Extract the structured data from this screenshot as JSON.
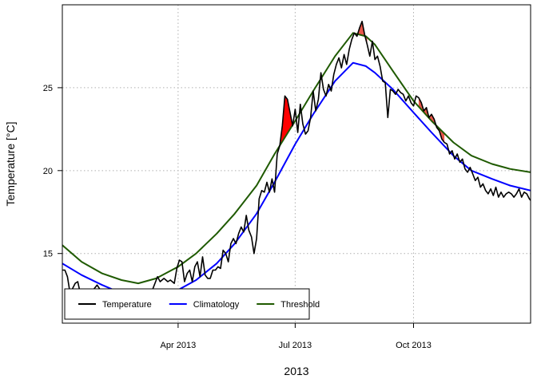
{
  "chart_data": {
    "type": "line",
    "title": "",
    "xlabel": "2013",
    "ylabel": "Temperature [°C]",
    "xlim": [
      "2013-01-01",
      "2013-12-31"
    ],
    "ylim": [
      10.8,
      30.0
    ],
    "grid": true,
    "legend_position": "bottom-left",
    "x_ticks": [
      {
        "date": "2013-04-01",
        "label": "Apr 2013"
      },
      {
        "date": "2013-07-01",
        "label": "Jul 2013"
      },
      {
        "date": "2013-10-01",
        "label": "Oct 2013"
      }
    ],
    "y_ticks": [
      15,
      20,
      25
    ],
    "series": [
      {
        "name": "Temperature",
        "color": "#000000",
        "points": [
          [
            "2013-01-01",
            14.0
          ],
          [
            "2013-01-03",
            14.0
          ],
          [
            "2013-01-05",
            13.6
          ],
          [
            "2013-01-07",
            12.6
          ],
          [
            "2013-01-09",
            12.9
          ],
          [
            "2013-01-11",
            13.2
          ],
          [
            "2013-01-13",
            13.3
          ],
          [
            "2013-01-15",
            12.6
          ],
          [
            "2013-01-20",
            12.5
          ],
          [
            "2013-01-25",
            12.8
          ],
          [
            "2013-01-28",
            13.1
          ],
          [
            "2013-02-03",
            12.4
          ],
          [
            "2013-02-10",
            12.3
          ],
          [
            "2013-02-18",
            12.2
          ],
          [
            "2013-02-25",
            12.3
          ],
          [
            "2013-03-05",
            12.5
          ],
          [
            "2013-03-12",
            12.8
          ],
          [
            "2013-03-15",
            13.4
          ],
          [
            "2013-03-16",
            13.6
          ],
          [
            "2013-03-18",
            13.3
          ],
          [
            "2013-03-21",
            13.5
          ],
          [
            "2013-03-24",
            13.3
          ],
          [
            "2013-03-26",
            13.4
          ],
          [
            "2013-03-29",
            13.2
          ],
          [
            "2013-03-31",
            14.1
          ],
          [
            "2013-04-02",
            14.6
          ],
          [
            "2013-04-04",
            14.5
          ],
          [
            "2013-04-06",
            13.3
          ],
          [
            "2013-04-08",
            13.8
          ],
          [
            "2013-04-10",
            14.0
          ],
          [
            "2013-04-12",
            13.3
          ],
          [
            "2013-04-14",
            14.2
          ],
          [
            "2013-04-16",
            14.5
          ],
          [
            "2013-04-18",
            13.6
          ],
          [
            "2013-04-20",
            14.8
          ],
          [
            "2013-04-22",
            13.7
          ],
          [
            "2013-04-24",
            13.5
          ],
          [
            "2013-04-26",
            13.5
          ],
          [
            "2013-04-28",
            14.0
          ],
          [
            "2013-04-30",
            14.0
          ],
          [
            "2013-05-02",
            14.2
          ],
          [
            "2013-05-04",
            14.1
          ],
          [
            "2013-05-06",
            15.2
          ],
          [
            "2013-05-08",
            15.0
          ],
          [
            "2013-05-10",
            14.5
          ],
          [
            "2013-05-12",
            15.6
          ],
          [
            "2013-05-14",
            15.9
          ],
          [
            "2013-05-16",
            15.6
          ],
          [
            "2013-05-18",
            16.2
          ],
          [
            "2013-05-20",
            16.6
          ],
          [
            "2013-05-22",
            16.3
          ],
          [
            "2013-05-24",
            17.3
          ],
          [
            "2013-05-26",
            16.4
          ],
          [
            "2013-05-28",
            16.0
          ],
          [
            "2013-05-30",
            15.0
          ],
          [
            "2013-06-01",
            15.9
          ],
          [
            "2013-06-03",
            18.3
          ],
          [
            "2013-06-05",
            18.8
          ],
          [
            "2013-06-07",
            18.7
          ],
          [
            "2013-06-09",
            19.3
          ],
          [
            "2013-06-11",
            18.7
          ],
          [
            "2013-06-13",
            19.5
          ],
          [
            "2013-06-15",
            18.7
          ],
          [
            "2013-06-17",
            21.0
          ],
          [
            "2013-06-19",
            21.5
          ],
          [
            "2013-06-21",
            22.7
          ],
          [
            "2013-06-23",
            24.5
          ],
          [
            "2013-06-25",
            24.3
          ],
          [
            "2013-06-27",
            23.5
          ],
          [
            "2013-06-29",
            22.7
          ],
          [
            "2013-07-01",
            23.7
          ],
          [
            "2013-07-03",
            22.3
          ],
          [
            "2013-07-05",
            24.0
          ],
          [
            "2013-07-07",
            22.8
          ],
          [
            "2013-07-09",
            22.2
          ],
          [
            "2013-07-11",
            22.4
          ],
          [
            "2013-07-13",
            23.2
          ],
          [
            "2013-07-15",
            24.8
          ],
          [
            "2013-07-17",
            23.6
          ],
          [
            "2013-07-19",
            24.3
          ],
          [
            "2013-07-21",
            25.9
          ],
          [
            "2013-07-23",
            24.9
          ],
          [
            "2013-07-25",
            24.5
          ],
          [
            "2013-07-27",
            25.2
          ],
          [
            "2013-07-29",
            24.8
          ],
          [
            "2013-07-31",
            25.8
          ],
          [
            "2013-08-02",
            26.4
          ],
          [
            "2013-08-04",
            26.8
          ],
          [
            "2013-08-06",
            26.2
          ],
          [
            "2013-08-08",
            27.0
          ],
          [
            "2013-08-10",
            26.4
          ],
          [
            "2013-08-12",
            27.3
          ],
          [
            "2013-08-14",
            27.9
          ],
          [
            "2013-08-16",
            28.3
          ],
          [
            "2013-08-18",
            28.1
          ],
          [
            "2013-08-20",
            28.6
          ],
          [
            "2013-08-22",
            29.0
          ],
          [
            "2013-08-24",
            28.2
          ],
          [
            "2013-08-26",
            27.6
          ],
          [
            "2013-08-28",
            26.9
          ],
          [
            "2013-08-30",
            27.8
          ],
          [
            "2013-09-01",
            26.7
          ],
          [
            "2013-09-03",
            26.9
          ],
          [
            "2013-09-05",
            26.3
          ],
          [
            "2013-09-07",
            25.4
          ],
          [
            "2013-09-09",
            25.3
          ],
          [
            "2013-09-11",
            23.2
          ],
          [
            "2013-09-13",
            24.9
          ],
          [
            "2013-09-15",
            24.8
          ],
          [
            "2013-09-17",
            24.6
          ],
          [
            "2013-09-19",
            24.9
          ],
          [
            "2013-09-21",
            24.7
          ],
          [
            "2013-09-23",
            24.6
          ],
          [
            "2013-09-25",
            24.2
          ],
          [
            "2013-09-27",
            24.5
          ],
          [
            "2013-09-29",
            24.1
          ],
          [
            "2013-10-01",
            23.9
          ],
          [
            "2013-10-03",
            24.5
          ],
          [
            "2013-10-05",
            24.4
          ],
          [
            "2013-10-07",
            24.1
          ],
          [
            "2013-10-09",
            23.6
          ],
          [
            "2013-10-11",
            23.8
          ],
          [
            "2013-10-13",
            23.2
          ],
          [
            "2013-10-15",
            23.4
          ],
          [
            "2013-10-17",
            23.1
          ],
          [
            "2013-10-19",
            22.6
          ],
          [
            "2013-10-21",
            22.4
          ],
          [
            "2013-10-23",
            21.9
          ],
          [
            "2013-10-25",
            21.7
          ],
          [
            "2013-10-27",
            21.6
          ],
          [
            "2013-10-29",
            21.0
          ],
          [
            "2013-10-31",
            21.2
          ],
          [
            "2013-11-02",
            20.7
          ],
          [
            "2013-11-04",
            21.0
          ],
          [
            "2013-11-06",
            20.5
          ],
          [
            "2013-11-08",
            20.7
          ],
          [
            "2013-11-10",
            20.1
          ],
          [
            "2013-11-12",
            19.9
          ],
          [
            "2013-11-14",
            20.2
          ],
          [
            "2013-11-16",
            19.8
          ],
          [
            "2013-11-18",
            19.4
          ],
          [
            "2013-11-20",
            19.6
          ],
          [
            "2013-11-22",
            19.0
          ],
          [
            "2013-11-24",
            19.2
          ],
          [
            "2013-11-26",
            18.8
          ],
          [
            "2013-11-28",
            18.6
          ],
          [
            "2013-11-30",
            18.9
          ],
          [
            "2013-12-02",
            18.5
          ],
          [
            "2013-12-04",
            19.0
          ],
          [
            "2013-12-06",
            18.4
          ],
          [
            "2013-12-08",
            18.7
          ],
          [
            "2013-12-10",
            18.4
          ],
          [
            "2013-12-12",
            18.6
          ],
          [
            "2013-12-14",
            18.7
          ],
          [
            "2013-12-16",
            18.6
          ],
          [
            "2013-12-18",
            18.4
          ],
          [
            "2013-12-20",
            18.6
          ],
          [
            "2013-12-22",
            18.9
          ],
          [
            "2013-12-24",
            18.4
          ],
          [
            "2013-12-26",
            18.7
          ],
          [
            "2013-12-28",
            18.6
          ],
          [
            "2013-12-30",
            18.3
          ],
          [
            "2013-12-31",
            18.2
          ]
        ]
      },
      {
        "name": "Climatology",
        "color": "#0000ff",
        "points": [
          [
            "2013-01-01",
            14.4
          ],
          [
            "2013-01-16",
            13.7
          ],
          [
            "2013-02-01",
            13.1
          ],
          [
            "2013-02-16",
            12.6
          ],
          [
            "2013-03-01",
            12.3
          ],
          [
            "2013-03-15",
            12.4
          ],
          [
            "2013-04-01",
            12.8
          ],
          [
            "2013-04-15",
            13.4
          ],
          [
            "2013-05-01",
            14.4
          ],
          [
            "2013-05-15",
            15.6
          ],
          [
            "2013-06-01",
            17.4
          ],
          [
            "2013-06-15",
            19.3
          ],
          [
            "2013-07-01",
            21.6
          ],
          [
            "2013-07-15",
            23.4
          ],
          [
            "2013-08-01",
            25.4
          ],
          [
            "2013-08-15",
            26.5
          ],
          [
            "2013-08-25",
            26.3
          ],
          [
            "2013-09-01",
            25.9
          ],
          [
            "2013-09-15",
            24.9
          ],
          [
            "2013-10-01",
            23.5
          ],
          [
            "2013-10-15",
            22.3
          ],
          [
            "2013-11-01",
            20.9
          ],
          [
            "2013-11-15",
            20.0
          ],
          [
            "2013-12-01",
            19.5
          ],
          [
            "2013-12-15",
            19.1
          ],
          [
            "2013-12-31",
            18.8
          ]
        ]
      },
      {
        "name": "Threshold",
        "color": "#1f5a00",
        "points": [
          [
            "2013-01-01",
            15.5
          ],
          [
            "2013-01-16",
            14.5
          ],
          [
            "2013-02-01",
            13.8
          ],
          [
            "2013-02-16",
            13.4
          ],
          [
            "2013-03-01",
            13.2
          ],
          [
            "2013-03-15",
            13.5
          ],
          [
            "2013-04-01",
            14.2
          ],
          [
            "2013-04-15",
            15.0
          ],
          [
            "2013-05-01",
            16.2
          ],
          [
            "2013-05-15",
            17.4
          ],
          [
            "2013-06-01",
            19.1
          ],
          [
            "2013-06-15",
            21.0
          ],
          [
            "2013-07-01",
            23.0
          ],
          [
            "2013-07-15",
            24.8
          ],
          [
            "2013-08-01",
            26.9
          ],
          [
            "2013-08-15",
            28.3
          ],
          [
            "2013-08-25",
            28.1
          ],
          [
            "2013-09-01",
            27.6
          ],
          [
            "2013-09-15",
            26.0
          ],
          [
            "2013-10-01",
            24.2
          ],
          [
            "2013-10-15",
            23.0
          ],
          [
            "2013-11-01",
            21.7
          ],
          [
            "2013-11-15",
            20.9
          ],
          [
            "2013-12-01",
            20.4
          ],
          [
            "2013-12-15",
            20.1
          ],
          [
            "2013-12-31",
            19.9
          ]
        ]
      }
    ],
    "events": [
      {
        "start": "2013-06-19",
        "end": "2013-06-29",
        "color": "#ff0000"
      },
      {
        "start": "2013-08-19",
        "end": "2013-08-26",
        "color": "#e8564a"
      },
      {
        "start": "2013-10-05",
        "end": "2013-10-25",
        "color": "#e8564a"
      }
    ]
  }
}
